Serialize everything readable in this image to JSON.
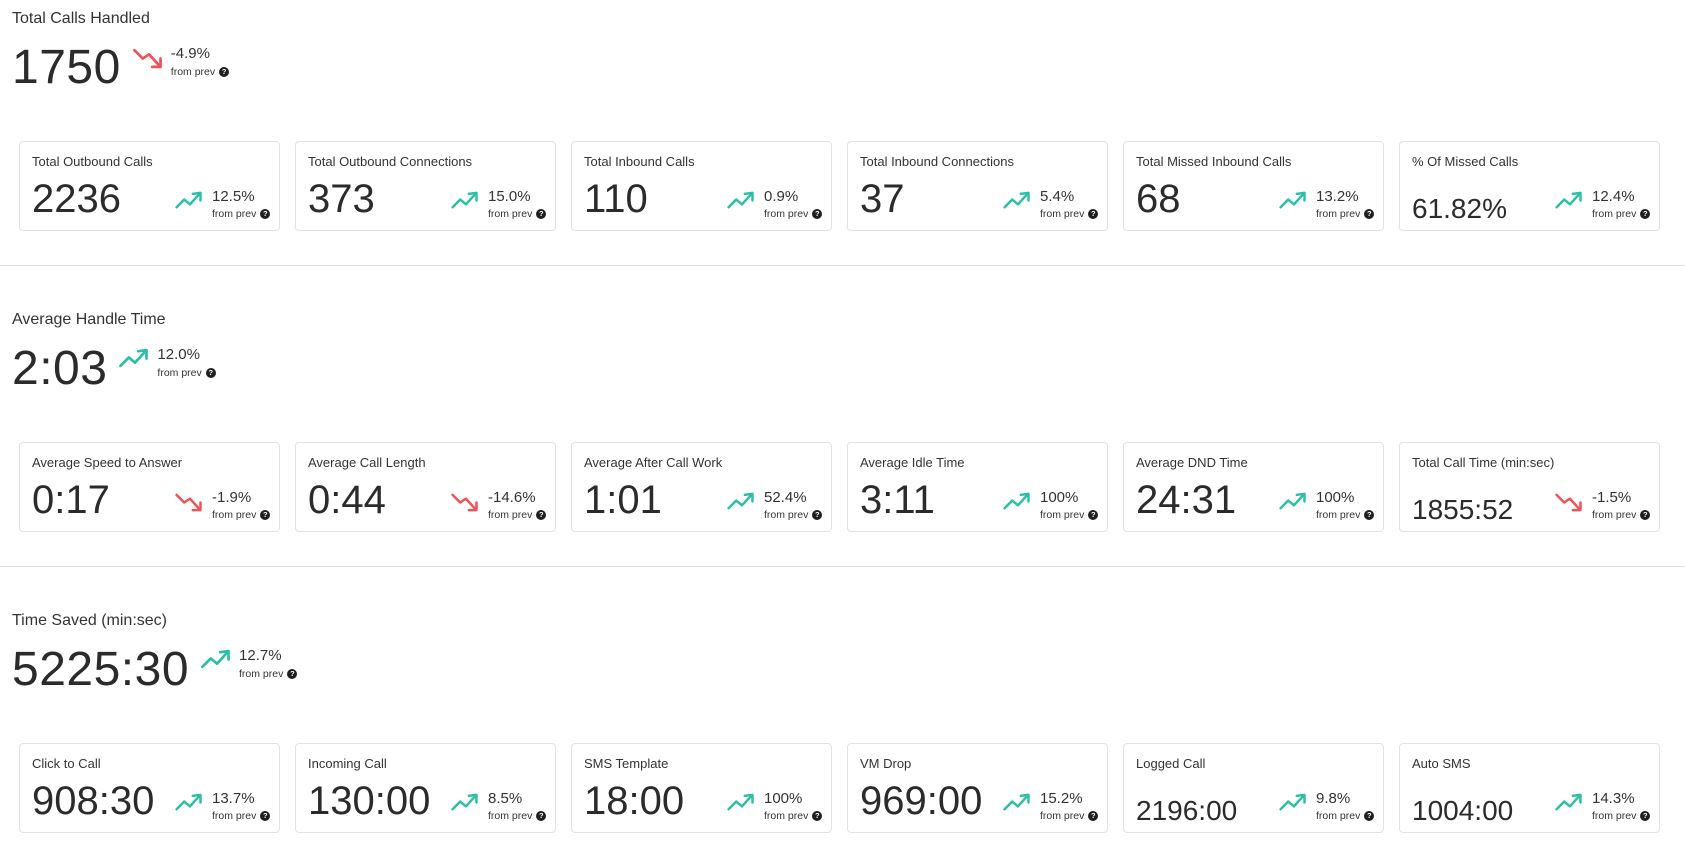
{
  "colors": {
    "up": "#2bbfa4",
    "down": "#ef5258",
    "text": "#2b2b2b",
    "border": "#e2e2e2"
  },
  "sections": [
    {
      "title": "Total Calls Handled",
      "value": "1750",
      "trend": "down",
      "change": "-4.9%",
      "from_prev": "from prev",
      "cards": [
        {
          "label": "Total Outbound Calls",
          "value": "2236",
          "trend": "up",
          "change": "12.5%",
          "from_prev": "from prev"
        },
        {
          "label": "Total Outbound Connections",
          "value": "373",
          "trend": "up",
          "change": "15.0%",
          "from_prev": "from prev"
        },
        {
          "label": "Total Inbound Calls",
          "value": "110",
          "trend": "up",
          "change": "0.9%",
          "from_prev": "from prev"
        },
        {
          "label": "Total Inbound Connections",
          "value": "37",
          "trend": "up",
          "change": "5.4%",
          "from_prev": "from prev"
        },
        {
          "label": "Total Missed Inbound Calls",
          "value": "68",
          "trend": "up",
          "change": "13.2%",
          "from_prev": "from prev"
        },
        {
          "label": "% Of Missed Calls",
          "value": "61.82%",
          "trend": "up",
          "change": "12.4%",
          "from_prev": "from prev"
        }
      ]
    },
    {
      "title": "Average Handle Time",
      "value": "2:03",
      "trend": "up",
      "change": "12.0%",
      "from_prev": "from prev",
      "cards": [
        {
          "label": "Average Speed to Answer",
          "value": "0:17",
          "trend": "down",
          "change": "-1.9%",
          "from_prev": "from prev"
        },
        {
          "label": "Average Call Length",
          "value": "0:44",
          "trend": "down",
          "change": "-14.6%",
          "from_prev": "from prev"
        },
        {
          "label": "Average After Call Work",
          "value": "1:01",
          "trend": "up",
          "change": "52.4%",
          "from_prev": "from prev"
        },
        {
          "label": "Average Idle Time",
          "value": "3:11",
          "trend": "up",
          "change": "100%",
          "from_prev": "from prev"
        },
        {
          "label": "Average DND Time",
          "value": "24:31",
          "trend": "up",
          "change": "100%",
          "from_prev": "from prev"
        },
        {
          "label": "Total Call Time (min:sec)",
          "value": "1855:52",
          "trend": "down",
          "change": "-1.5%",
          "from_prev": "from prev"
        }
      ]
    },
    {
      "title": "Time Saved (min:sec)",
      "value": "5225:30",
      "trend": "up",
      "change": "12.7%",
      "from_prev": "from prev",
      "cards": [
        {
          "label": "Click to Call",
          "value": "908:30",
          "trend": "up",
          "change": "13.7%",
          "from_prev": "from prev"
        },
        {
          "label": "Incoming Call",
          "value": "130:00",
          "trend": "up",
          "change": "8.5%",
          "from_prev": "from prev"
        },
        {
          "label": "SMS Template",
          "value": "18:00",
          "trend": "up",
          "change": "100%",
          "from_prev": "from prev"
        },
        {
          "label": "VM Drop",
          "value": "969:00",
          "trend": "up",
          "change": "15.2%",
          "from_prev": "from prev"
        },
        {
          "label": "Logged Call",
          "value": "2196:00",
          "trend": "up",
          "change": "9.8%",
          "from_prev": "from prev"
        },
        {
          "label": "Auto SMS",
          "value": "1004:00",
          "trend": "up",
          "change": "14.3%",
          "from_prev": "from prev"
        }
      ]
    }
  ]
}
